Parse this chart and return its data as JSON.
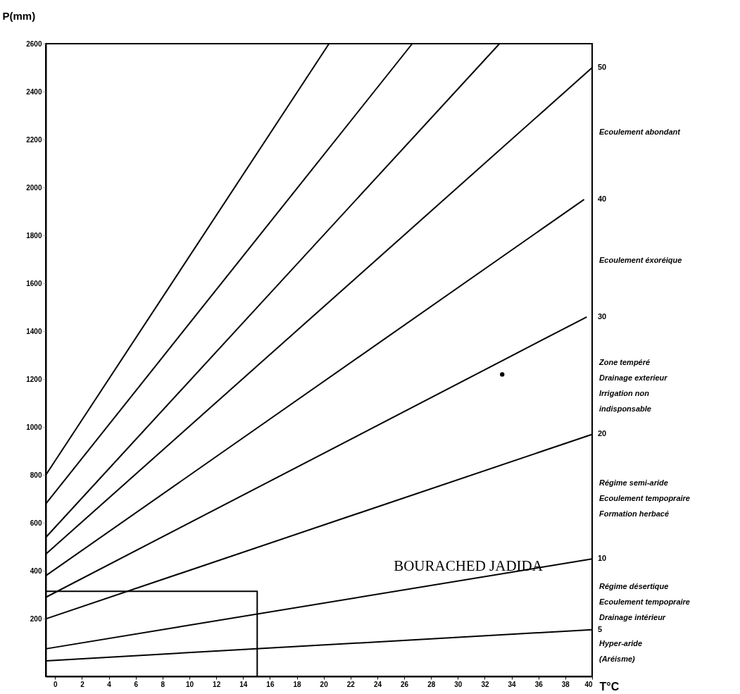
{
  "chart_data": {
    "type": "line",
    "xlabel": "T°C",
    "ylabel": "P(mm)",
    "xlim": [
      -0.7,
      40
    ],
    "ylim": [
      -40,
      2600
    ],
    "xticks": [
      0,
      2,
      4,
      6,
      8,
      10,
      12,
      14,
      16,
      18,
      20,
      22,
      24,
      26,
      28,
      30,
      32,
      34,
      36,
      38,
      40
    ],
    "yticks": [
      200,
      400,
      600,
      800,
      1000,
      1200,
      1400,
      1600,
      1800,
      2000,
      2200,
      2400,
      2600
    ],
    "grid": false,
    "line_style": "solid",
    "marker": "none",
    "series": [
      {
        "color": "#000000",
        "x": [
          -0.7,
          20.4
        ],
        "values": [
          800,
          2600
        ]
      },
      {
        "color": "#000000",
        "x": [
          -0.7,
          26.6
        ],
        "values": [
          680,
          2600
        ]
      },
      {
        "color": "#000000",
        "x": [
          -0.7,
          33.1
        ],
        "values": [
          540,
          2600
        ]
      },
      {
        "name": "50",
        "color": "#000000",
        "x": [
          -0.7,
          40
        ],
        "values": [
          470,
          2500
        ]
      },
      {
        "name": "40",
        "color": "#000000",
        "x": [
          -0.7,
          39.4
        ],
        "values": [
          380,
          1950
        ]
      },
      {
        "name": "30",
        "color": "#000000",
        "x": [
          -0.7,
          39.6
        ],
        "values": [
          290,
          1460
        ]
      },
      {
        "name": "20",
        "color": "#000000",
        "x": [
          -0.7,
          40
        ],
        "values": [
          200,
          970
        ]
      },
      {
        "name": "10",
        "color": "#000000",
        "x": [
          -0.7,
          40
        ],
        "values": [
          75,
          450
        ]
      },
      {
        "name": "5",
        "color": "#000000",
        "x": [
          -0.7,
          40
        ],
        "values": [
          25,
          155
        ]
      },
      {
        "color": "#000000",
        "x": [
          -0.7,
          15.05,
          15.05
        ],
        "values": [
          315,
          315,
          -40
        ]
      },
      {
        "type": "scatter",
        "color": "#000000",
        "x": [
          33.3
        ],
        "values": [
          1220
        ]
      }
    ],
    "annotations": [
      "BOURACHED JADIDA",
      "Ecoulement abondant",
      "Ecoulement éxoréique",
      "Zone tempéré\nDrainage exterieur\nIrrigation non\n indisponsable",
      "Régime semi-aride\nEcoulement tempopraire\nFormation herbacé",
      "Régime désertique\nEcoulement tempopraire\nDrainage intérieur",
      "Hyper-aride\n (Aréisme)"
    ]
  }
}
